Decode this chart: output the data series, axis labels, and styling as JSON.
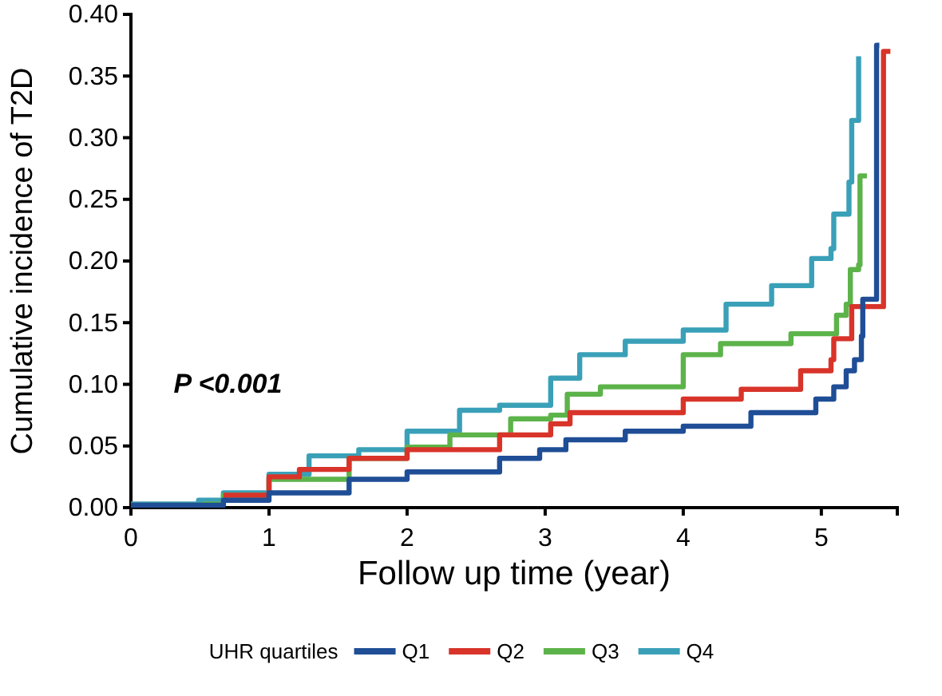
{
  "chart_data": {
    "type": "step",
    "xlabel": "Follow up time (year)",
    "ylabel": "Cumulative incidence of T2D",
    "legend_title": "UHR quartiles",
    "legend": "bottom",
    "grid": false,
    "line_style": "solid",
    "xlim": [
      0,
      5.55
    ],
    "xticks": [
      0,
      1,
      2,
      3,
      4,
      5
    ],
    "ylim": [
      0,
      0.4
    ],
    "yticks": [
      {
        "value": 0,
        "label": "0.00"
      },
      {
        "value": 0.05,
        "label": "0.05"
      },
      {
        "value": 0.1,
        "label": "0.10"
      },
      {
        "value": 0.15,
        "label": "0.15"
      },
      {
        "value": 0.2,
        "label": "0.20"
      },
      {
        "value": 0.25,
        "label": "0.25"
      },
      {
        "value": 0.3,
        "label": "0.30"
      },
      {
        "value": 0.35,
        "label": "0.35"
      },
      {
        "value": 0.4,
        "label": "0.40"
      }
    ],
    "annotations": [
      "P <0.001"
    ],
    "series": [
      {
        "name": "Q1",
        "color": "#1f4e96",
        "x": [
          0,
          0.67,
          1.0,
          1.58,
          2.0,
          2.67,
          2.96,
          3.15,
          3.58,
          4.0,
          4.49,
          4.96,
          5.09,
          5.18,
          5.24,
          5.29,
          5.3,
          5.4,
          5.42
        ],
        "values": [
          0.002,
          0.006,
          0.012,
          0.023,
          0.029,
          0.04,
          0.047,
          0.055,
          0.062,
          0.066,
          0.077,
          0.088,
          0.098,
          0.111,
          0.12,
          0.139,
          0.169,
          0.375,
          0.375
        ]
      },
      {
        "name": "Q2",
        "color": "#d8342a",
        "x": [
          0.67,
          1.0,
          1.22,
          1.58,
          2.0,
          2.67,
          3.04,
          3.18,
          4.0,
          4.42,
          4.85,
          5.07,
          5.09,
          5.22,
          5.45,
          5.5
        ],
        "values": [
          0.01,
          0.025,
          0.031,
          0.04,
          0.047,
          0.059,
          0.068,
          0.077,
          0.088,
          0.096,
          0.111,
          0.12,
          0.137,
          0.163,
          0.37,
          0.37
        ]
      },
      {
        "name": "Q3",
        "color": "#5cb34a",
        "x": [
          0,
          0.53,
          0.67,
          1.0,
          1.58,
          2.0,
          2.31,
          2.75,
          3.04,
          3.16,
          3.4,
          4.0,
          4.27,
          4.78,
          5.11,
          5.18,
          5.21,
          5.27,
          5.28,
          5.33
        ],
        "values": [
          0.002,
          0.003,
          0.01,
          0.023,
          0.04,
          0.049,
          0.059,
          0.072,
          0.075,
          0.092,
          0.098,
          0.124,
          0.133,
          0.141,
          0.156,
          0.165,
          0.193,
          0.197,
          0.269,
          0.269
        ]
      },
      {
        "name": "Q4",
        "color": "#3aa0b8",
        "x": [
          0,
          0.49,
          0.67,
          1.0,
          1.29,
          1.65,
          2.0,
          2.38,
          2.67,
          3.04,
          3.25,
          3.58,
          4.0,
          4.31,
          4.64,
          4.93,
          5.07,
          5.09,
          5.2,
          5.22,
          5.27
        ],
        "values": [
          0.003,
          0.006,
          0.012,
          0.027,
          0.042,
          0.047,
          0.062,
          0.079,
          0.083,
          0.105,
          0.124,
          0.135,
          0.144,
          0.165,
          0.18,
          0.202,
          0.21,
          0.238,
          0.264,
          0.314,
          0.366
        ]
      }
    ]
  }
}
